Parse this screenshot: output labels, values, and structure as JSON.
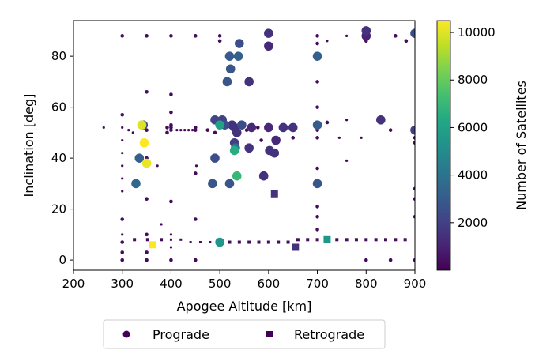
{
  "chart_data": {
    "type": "scatter",
    "xlabel": "Apogee Altitude [km]",
    "ylabel": "Inclination [deg]",
    "xlim": [
      200,
      900
    ],
    "ylim": [
      -4,
      94
    ],
    "xticks": [
      200,
      300,
      400,
      500,
      600,
      700,
      800,
      900
    ],
    "yticks": [
      0,
      20,
      40,
      60,
      80
    ],
    "grid": false,
    "colorbar": {
      "label": "Number of Satellites",
      "range": [
        0,
        10500
      ],
      "ticks": [
        2000,
        4000,
        6000,
        8000,
        10000
      ],
      "colormap": "viridis"
    },
    "legend": {
      "placement": "bottom-center",
      "entries": [
        {
          "label": "Prograde",
          "marker": "circle"
        },
        {
          "label": "Retrograde",
          "marker": "square"
        }
      ]
    },
    "series": [
      {
        "name": "Prograde",
        "marker": "circle",
        "columns": [
          "apogee_km",
          "inclination_deg",
          "num_satellites"
        ],
        "points": [
          [
            340,
            53,
            10000
          ],
          [
            345,
            46,
            10500
          ],
          [
            350,
            38,
            10200
          ],
          [
            343,
            53,
            2500
          ],
          [
            335,
            40,
            3200
          ],
          [
            328,
            30,
            3500
          ],
          [
            300,
            88,
            300
          ],
          [
            300,
            57,
            400
          ],
          [
            300,
            16,
            300
          ],
          [
            300,
            10,
            200
          ],
          [
            300,
            7,
            300
          ],
          [
            300,
            3,
            300
          ],
          [
            300,
            0,
            300
          ],
          [
            300,
            52,
            200
          ],
          [
            300,
            47,
            200
          ],
          [
            300,
            42,
            200
          ],
          [
            300,
            37,
            200
          ],
          [
            300,
            32,
            200
          ],
          [
            300,
            27,
            200
          ],
          [
            350,
            88,
            300
          ],
          [
            350,
            66,
            300
          ],
          [
            350,
            51,
            300
          ],
          [
            350,
            40,
            300
          ],
          [
            350,
            24,
            300
          ],
          [
            350,
            0,
            300
          ],
          [
            350,
            3,
            300
          ],
          [
            350,
            10,
            300
          ],
          [
            262,
            52,
            200
          ],
          [
            313,
            51,
            200
          ],
          [
            322,
            50,
            200
          ],
          [
            372,
            37,
            200
          ],
          [
            380,
            14,
            200
          ],
          [
            392,
            52,
            300
          ],
          [
            392,
            50,
            300
          ],
          [
            400,
            88,
            300
          ],
          [
            400,
            65,
            300
          ],
          [
            400,
            58,
            300
          ],
          [
            400,
            53,
            300
          ],
          [
            400,
            52,
            300
          ],
          [
            400,
            51,
            300
          ],
          [
            400,
            23,
            300
          ],
          [
            400,
            10,
            200
          ],
          [
            400,
            5,
            200
          ],
          [
            400,
            0,
            300
          ],
          [
            412,
            51,
            200
          ],
          [
            420,
            51,
            200
          ],
          [
            428,
            51,
            200
          ],
          [
            436,
            51,
            200
          ],
          [
            444,
            51,
            200
          ],
          [
            450,
            88,
            300
          ],
          [
            450,
            52,
            300
          ],
          [
            450,
            51,
            300
          ],
          [
            450,
            34,
            300
          ],
          [
            450,
            16,
            300
          ],
          [
            450,
            0,
            300
          ],
          [
            452,
            37,
            200
          ],
          [
            475,
            51,
            250
          ],
          [
            490,
            50,
            300
          ],
          [
            490,
            55,
            2200
          ],
          [
            490,
            40,
            2500
          ],
          [
            485,
            30,
            2800
          ],
          [
            495,
            53,
            300
          ],
          [
            500,
            88,
            300
          ],
          [
            500,
            86,
            300
          ],
          [
            500,
            53,
            6000
          ],
          [
            500,
            7,
            5500
          ],
          [
            505,
            55,
            2000
          ],
          [
            510,
            53,
            2500
          ],
          [
            515,
            70,
            2800
          ],
          [
            520,
            80,
            3000
          ],
          [
            522,
            75,
            2800
          ],
          [
            520,
            30,
            2800
          ],
          [
            525,
            53,
            1500
          ],
          [
            530,
            52,
            1500
          ],
          [
            530,
            46,
            2000
          ],
          [
            530,
            43,
            6500
          ],
          [
            532,
            44,
            4000
          ],
          [
            535,
            33,
            7000
          ],
          [
            535,
            50,
            1500
          ],
          [
            538,
            80,
            3200
          ],
          [
            540,
            85,
            2500
          ],
          [
            545,
            53,
            2500
          ],
          [
            547,
            52,
            300
          ],
          [
            555,
            51,
            300
          ],
          [
            560,
            70,
            1500
          ],
          [
            560,
            44,
            1500
          ],
          [
            565,
            52,
            1200
          ],
          [
            578,
            52,
            300
          ],
          [
            585,
            47,
            300
          ],
          [
            590,
            33,
            1500
          ],
          [
            600,
            89,
            1500
          ],
          [
            600,
            84,
            1200
          ],
          [
            600,
            52,
            1200
          ],
          [
            600,
            42,
            300
          ],
          [
            602,
            43,
            1500
          ],
          [
            612,
            42,
            1500
          ],
          [
            615,
            47,
            1200
          ],
          [
            630,
            52,
            1500
          ],
          [
            650,
            52,
            1500
          ],
          [
            650,
            48,
            300
          ],
          [
            700,
            80,
            3200
          ],
          [
            700,
            53,
            3000
          ],
          [
            700,
            51,
            300
          ],
          [
            700,
            30,
            2800
          ],
          [
            700,
            88,
            300
          ],
          [
            700,
            85,
            300
          ],
          [
            700,
            70,
            300
          ],
          [
            700,
            60,
            300
          ],
          [
            700,
            48,
            300
          ],
          [
            700,
            36,
            300
          ],
          [
            700,
            21,
            300
          ],
          [
            700,
            17,
            300
          ],
          [
            700,
            12,
            300
          ],
          [
            720,
            86,
            200
          ],
          [
            720,
            54,
            300
          ],
          [
            745,
            48,
            200
          ],
          [
            760,
            55,
            200
          ],
          [
            760,
            39,
            200
          ],
          [
            760,
            88,
            200
          ],
          [
            790,
            48,
            200
          ],
          [
            800,
            90,
            1500
          ],
          [
            800,
            88,
            1000
          ],
          [
            800,
            86,
            500
          ],
          [
            800,
            0,
            300
          ],
          [
            830,
            55,
            1500
          ],
          [
            850,
            51,
            300
          ],
          [
            850,
            0,
            300
          ],
          [
            900,
            89,
            2500
          ],
          [
            900,
            51,
            2000
          ],
          [
            900,
            48,
            300
          ],
          [
            900,
            46,
            300
          ],
          [
            900,
            28,
            300
          ],
          [
            900,
            24,
            300
          ],
          [
            900,
            17,
            300
          ],
          [
            900,
            0,
            300
          ],
          [
            860,
            88,
            300
          ],
          [
            882,
            86,
            300
          ]
        ]
      },
      {
        "name": "Retrograde",
        "marker": "square",
        "columns": [
          "apogee_km",
          "inclination_deg",
          "num_satellites"
        ],
        "points": [
          [
            362,
            6,
            10500
          ],
          [
            352,
            8,
            300
          ],
          [
            325,
            8,
            300
          ],
          [
            380,
            8,
            300
          ],
          [
            400,
            8,
            200
          ],
          [
            420,
            8,
            200
          ],
          [
            440,
            7,
            200
          ],
          [
            460,
            7,
            200
          ],
          [
            480,
            7,
            200
          ],
          [
            500,
            7,
            300
          ],
          [
            520,
            7,
            300
          ],
          [
            540,
            7,
            300
          ],
          [
            560,
            7,
            300
          ],
          [
            580,
            7,
            300
          ],
          [
            600,
            7,
            300
          ],
          [
            620,
            7,
            300
          ],
          [
            640,
            7,
            300
          ],
          [
            660,
            8,
            300
          ],
          [
            680,
            8,
            300
          ],
          [
            700,
            8,
            300
          ],
          [
            720,
            8,
            5500
          ],
          [
            740,
            8,
            300
          ],
          [
            760,
            8,
            300
          ],
          [
            780,
            8,
            300
          ],
          [
            800,
            8,
            300
          ],
          [
            820,
            8,
            300
          ],
          [
            840,
            8,
            300
          ],
          [
            860,
            8,
            300
          ],
          [
            880,
            8,
            300
          ],
          [
            612,
            26,
            1500
          ],
          [
            655,
            5,
            1500
          ]
        ]
      }
    ]
  }
}
